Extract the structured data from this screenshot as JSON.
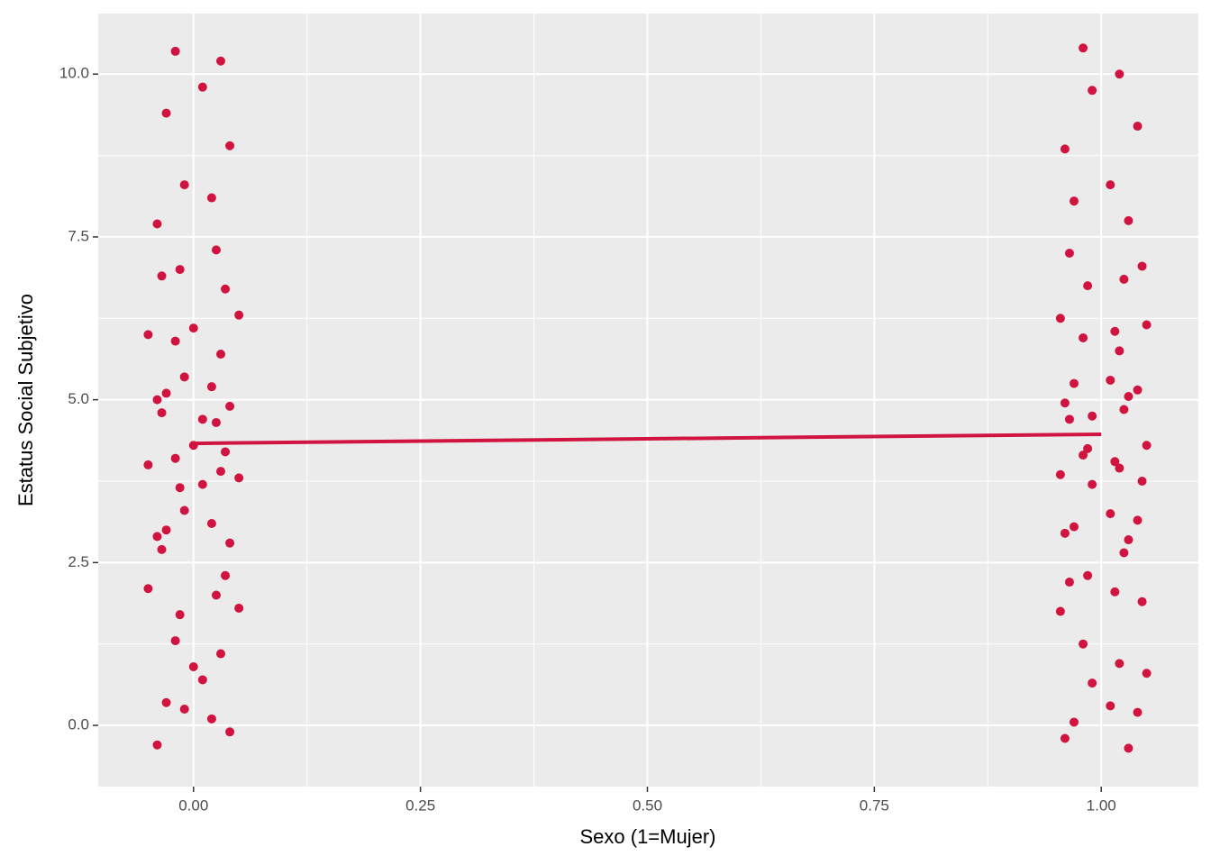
{
  "chart_data": {
    "type": "scatter",
    "xlabel": "Sexo (1=Mujer)",
    "ylabel": "Estatus Social Subjetivo",
    "color": "#d0143f",
    "grid": true,
    "xlim": [
      -0.105,
      1.107
    ],
    "ylim": [
      -0.94,
      10.93
    ],
    "xticks": [
      {
        "value": 0,
        "label": "0.00"
      },
      {
        "value": 0.25,
        "label": "0.25"
      },
      {
        "value": 0.5,
        "label": "0.50"
      },
      {
        "value": 0.75,
        "label": "0.75"
      },
      {
        "value": 1,
        "label": "1.00"
      }
    ],
    "yticks": [
      {
        "value": 0,
        "label": "0.0"
      },
      {
        "value": 2.5,
        "label": "2.5"
      },
      {
        "value": 5,
        "label": "5.0"
      },
      {
        "value": 7.5,
        "label": "7.5"
      },
      {
        "value": 10,
        "label": "10.0"
      }
    ],
    "x_minor_grid": [
      0.125,
      0.375,
      0.625,
      0.875
    ],
    "y_minor_grid": [
      1.25,
      3.75,
      6.25,
      8.75
    ],
    "x": [
      -0.04,
      0.02,
      -0.01,
      0.04,
      -0.03,
      0.01,
      0.03,
      -0.02,
      0.0,
      0.05,
      -0.05,
      0.035,
      -0.015,
      0.025,
      -0.035,
      -0.04,
      0.02,
      -0.01,
      0.04,
      -0.03,
      0.01,
      0.03,
      -0.02,
      0.0,
      0.05,
      -0.05,
      0.035,
      -0.015,
      0.025,
      -0.035,
      -0.04,
      0.02,
      -0.01,
      0.04,
      -0.03,
      0.01,
      0.03,
      -0.02,
      0.0,
      0.05,
      -0.05,
      0.035,
      -0.015,
      0.025,
      -0.035,
      -0.04,
      0.02,
      -0.01,
      0.04,
      -0.03,
      0.01,
      0.03,
      -0.02,
      1.03,
      0.97,
      1.01,
      0.96,
      1.04,
      0.99,
      1.02,
      0.98,
      1.05,
      0.955,
      1.015,
      0.985,
      1.045,
      0.965,
      1.025,
      1.03,
      0.97,
      1.01,
      0.96,
      1.04,
      0.99,
      1.02,
      0.98,
      1.05,
      0.955,
      1.015,
      0.985,
      1.045,
      0.965,
      1.025,
      1.03,
      0.97,
      1.01,
      0.96,
      1.04,
      0.99,
      1.02,
      0.98,
      1.05,
      0.955,
      1.015,
      0.985,
      1.045,
      0.965,
      1.025,
      1.03,
      0.97,
      1.01,
      0.96,
      1.04,
      0.99,
      1.02,
      0.98
    ],
    "y": [
      -0.3,
      0.1,
      0.25,
      -0.1,
      0.35,
      0.7,
      1.1,
      1.3,
      0.9,
      1.8,
      2.1,
      2.3,
      1.7,
      2.0,
      2.7,
      2.9,
      3.1,
      3.3,
      2.8,
      3.0,
      3.7,
      3.9,
      4.1,
      4.3,
      3.8,
      4.0,
      4.2,
      3.65,
      4.65,
      4.8,
      5.0,
      5.2,
      5.35,
      4.9,
      5.1,
      4.7,
      5.7,
      5.9,
      6.1,
      6.3,
      6.0,
      6.7,
      7.0,
      7.3,
      6.9,
      7.7,
      8.1,
      8.3,
      8.9,
      9.4,
      9.8,
      10.2,
      10.35,
      -0.35,
      0.05,
      0.3,
      -0.2,
      0.2,
      0.65,
      0.95,
      1.25,
      0.8,
      1.75,
      2.05,
      2.3,
      1.9,
      2.2,
      2.65,
      2.85,
      3.05,
      3.25,
      2.95,
      3.15,
      3.7,
      3.95,
      4.15,
      4.3,
      3.85,
      4.05,
      4.25,
      3.75,
      4.7,
      4.85,
      5.05,
      5.25,
      5.3,
      4.95,
      5.15,
      4.75,
      5.75,
      5.95,
      6.15,
      6.25,
      6.05,
      6.75,
      7.05,
      7.25,
      6.85,
      7.75,
      8.05,
      8.3,
      8.85,
      9.2,
      9.75,
      10.0,
      10.4
    ],
    "line": {
      "x": [
        0,
        1
      ],
      "y": [
        4.33,
        4.47
      ]
    }
  }
}
